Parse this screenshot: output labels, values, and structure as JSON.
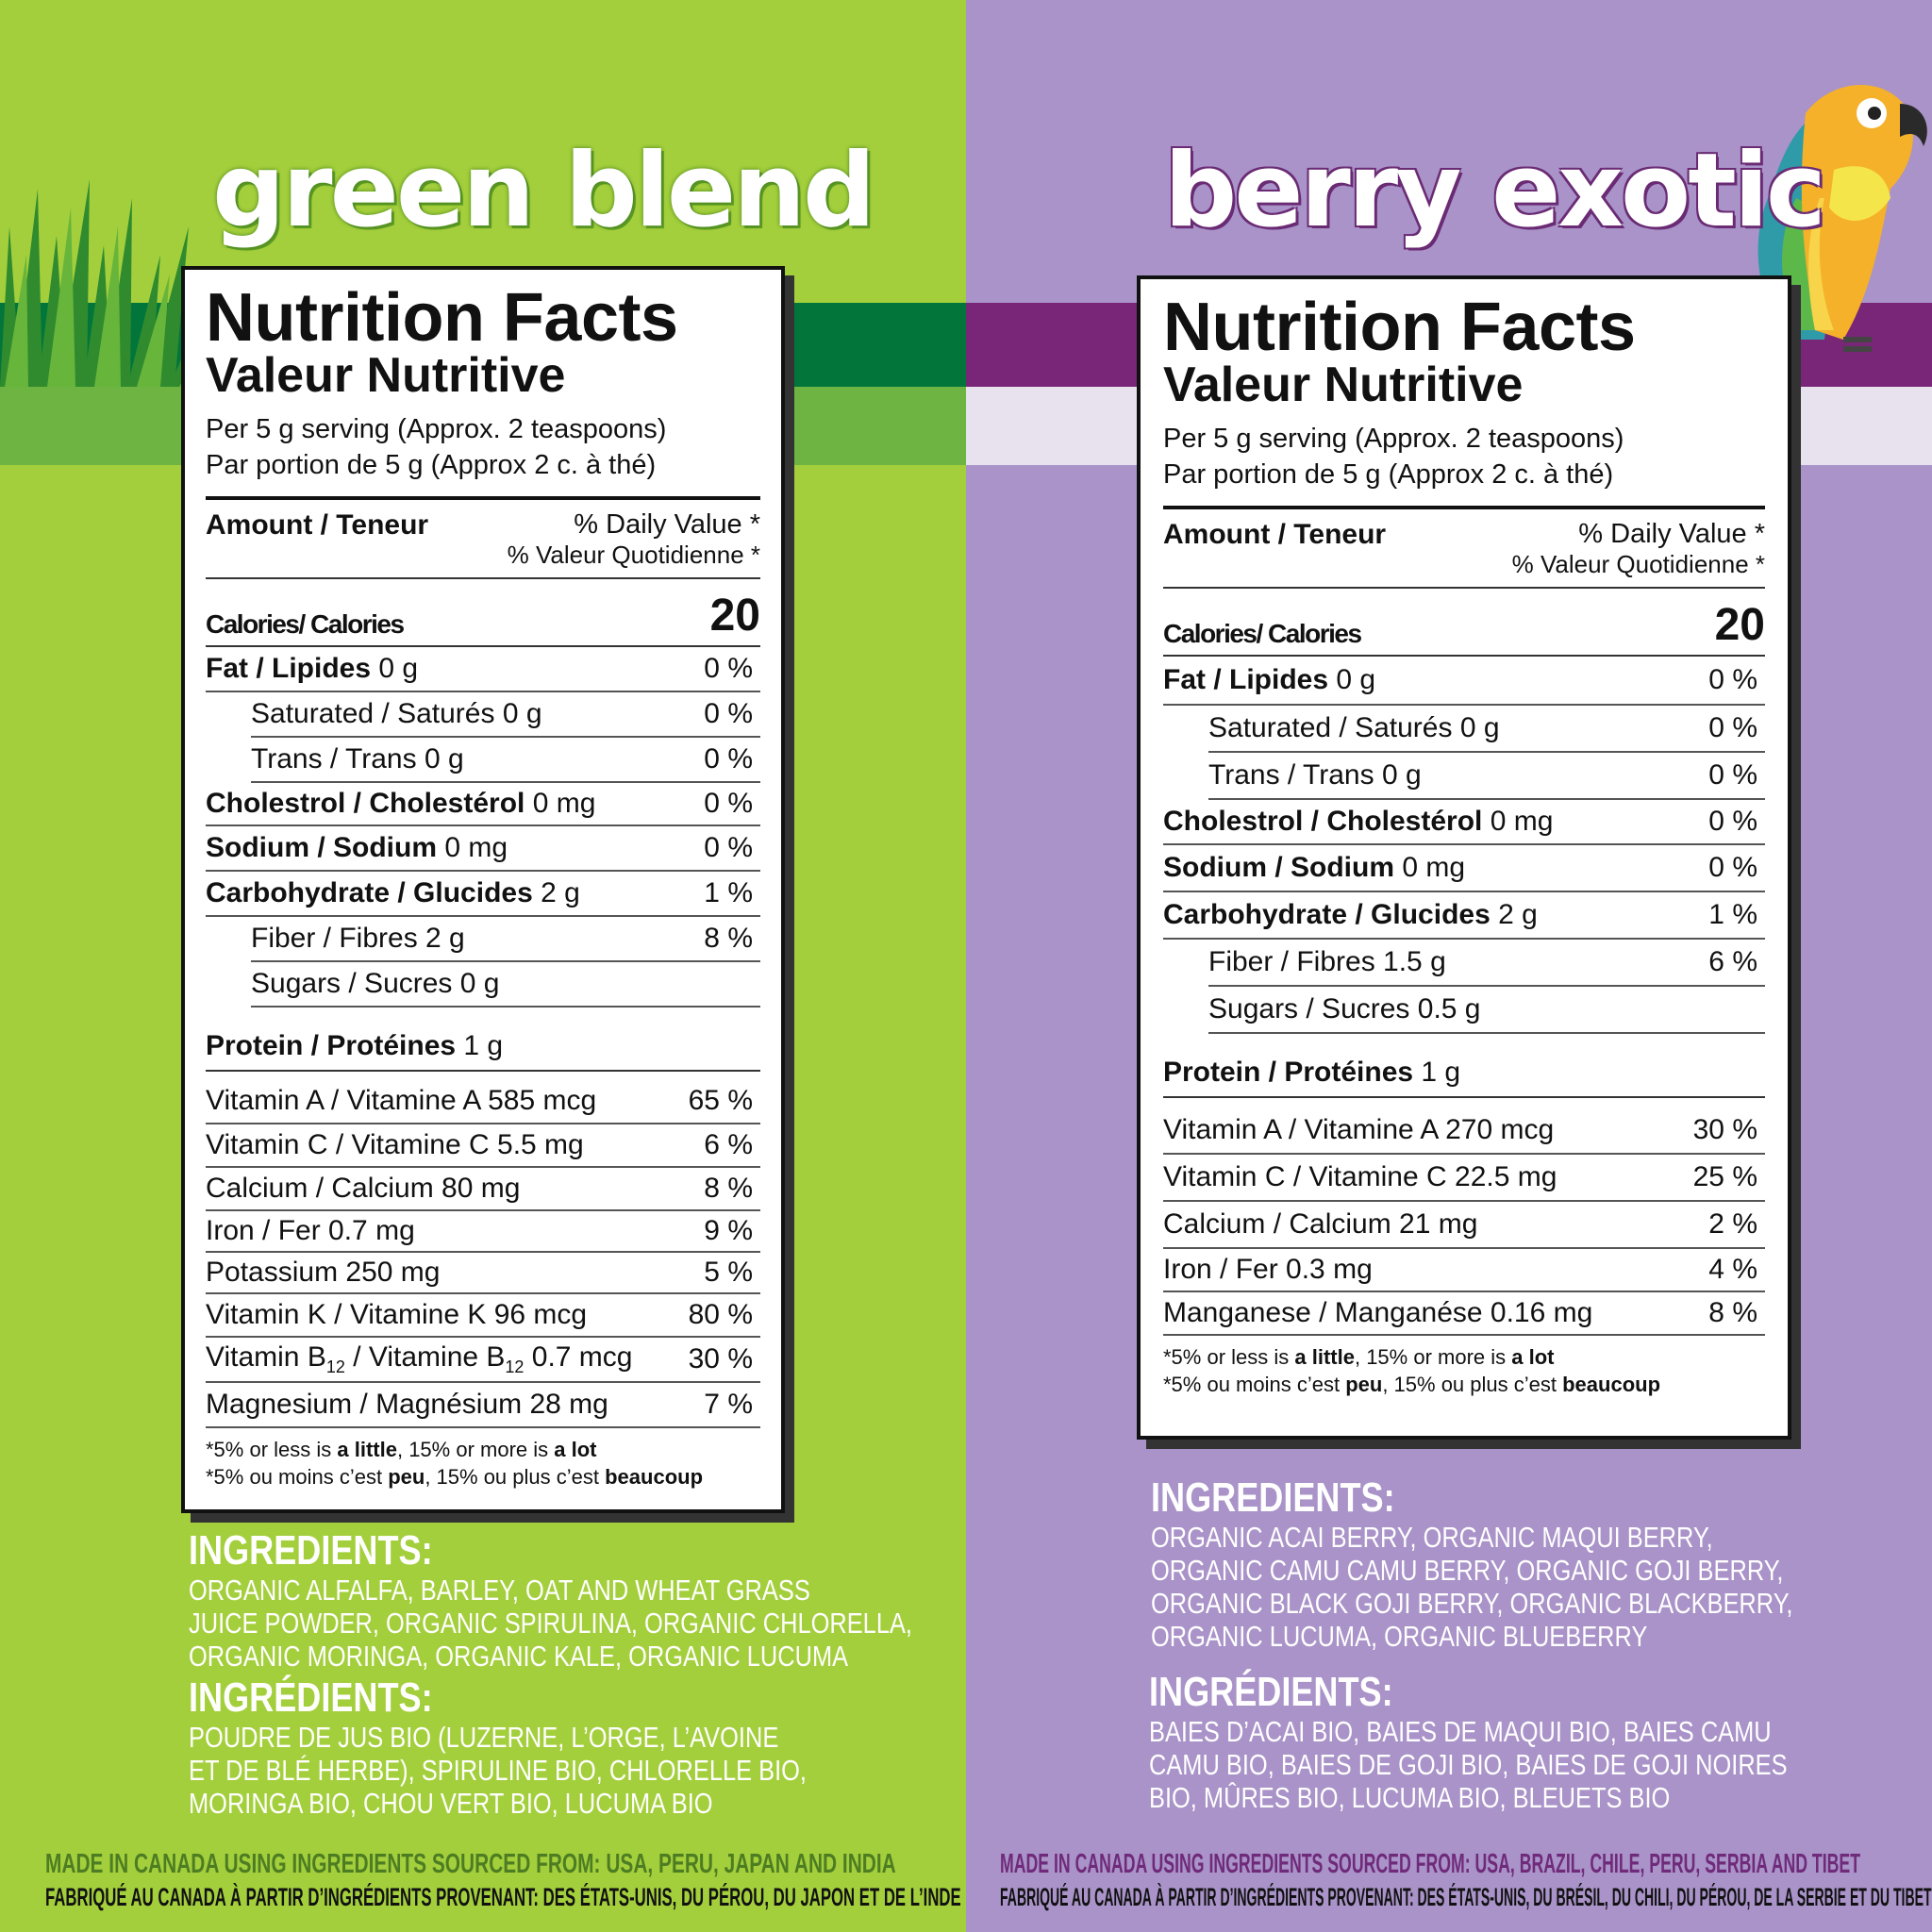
{
  "left": {
    "brand": "green blend",
    "colors": {
      "background": "#a4cf3c",
      "stripe_dark": "#02763a",
      "stripe_light": "#6db443",
      "made_in_text": "#4d7d22"
    },
    "panel": {
      "title": "Nutrition Facts",
      "subtitle": "Valeur Nutritive",
      "serving_en": "Per 5 g serving (Approx. 2 teaspoons)",
      "serving_fr": "Par portion de 5 g (Approx 2 c. à thé)",
      "amount_label": "Amount / Teneur",
      "dv_en": "% Daily Value *",
      "dv_fr": "% Valeur Quotidienne *",
      "calories_label": "Calories/ Calories",
      "calories_value": "20",
      "rows": [
        {
          "name": "Fat / Lipides",
          "amount": " 0 g",
          "dv": "0 %"
        },
        {
          "name": "Saturated / Saturés 0 g",
          "dv": "0 %"
        },
        {
          "name": "Trans / Trans 0 g",
          "dv": "0 %"
        },
        {
          "name": "Cholestrol / Cholestérol",
          "amount": " 0 mg",
          "dv": "0 %"
        },
        {
          "name": "Sodium / Sodium",
          "amount": " 0 mg",
          "dv": "0 %"
        },
        {
          "name": "Carbohydrate / Glucides",
          "amount": " 2 g",
          "dv": "1 %"
        },
        {
          "name": "Fiber / Fibres 2 g",
          "dv": "8 %"
        },
        {
          "name": "Sugars / Sucres 0 g",
          "dv": ""
        },
        {
          "name": "Protein / Protéines",
          "amount": " 1 g",
          "dv": ""
        },
        {
          "name": "Vitamin A / Vitamine A 585 mcg",
          "dv": "65 %"
        },
        {
          "name": "Vitamin C / Vitamine C 5.5 mg",
          "dv": "6 %"
        },
        {
          "name": "Calcium / Calcium 80 mg",
          "dv": "8 %"
        },
        {
          "name": "Iron / Fer 0.7 mg",
          "dv": "9 %"
        },
        {
          "name": "Potassium 250 mg",
          "dv": "5 %"
        },
        {
          "name": "Vitamin K / Vitamine K 96 mcg",
          "dv": "80 %"
        },
        {
          "name_a": "Vitamin B",
          "sub": "12",
          "name_b": " / Vitamine B",
          "name_c": " 0.7 mcg",
          "dv": "30 %"
        },
        {
          "name": "Magnesium / Magnésium 28 mg",
          "dv": "7 %"
        }
      ],
      "foot_en_a": "*5% or less is ",
      "foot_en_b": "a little",
      "foot_en_c": ", 15% or more is ",
      "foot_en_d": "a lot",
      "foot_fr_a": "*5% ou moins c’est ",
      "foot_fr_b": "peu",
      "foot_fr_c": ", 15% ou plus c’est ",
      "foot_fr_d": "beaucoup"
    },
    "ingredients_title": "INGREDIENTS:",
    "ingredients_lines": [
      "ORGANIC ALFALFA, BARLEY, OAT AND WHEAT GRASS",
      "JUICE POWDER, ORGANIC SPIRULINA, ORGANIC CHLORELLA,",
      "ORGANIC MORINGA, ORGANIC KALE, ORGANIC LUCUMA"
    ],
    "ingredients_fr_title": "INGRÉDIENTS:",
    "ingredients_fr_lines": [
      "POUDRE DE JUS BIO (LUZERNE, L’ORGE, L’AVOINE",
      "ET DE BLÉ HERBE), SPIRULINE BIO, CHLORELLE BIO,",
      "MORINGA BIO, CHOU VERT BIO, LUCUMA BIO"
    ],
    "made_en": "MADE IN CANADA USING INGREDIENTS SOURCED FROM: USA, PERU, JAPAN AND INDIA",
    "made_fr": "FABRIQUÉ AU CANADA À PARTIR D’INGRÉDIENTS PROVENANT: DES ÉTATS-UNIS, DU PÉROU, DU JAPON ET DE L’INDE"
  },
  "right": {
    "brand": "berry exotic",
    "colors": {
      "background": "#a993c8",
      "stripe_dark": "#792678",
      "stripe_light": "#e7e2ed",
      "made_in_text": "#6f2a7a"
    },
    "panel": {
      "title": "Nutrition Facts",
      "subtitle": "Valeur Nutritive",
      "serving_en": "Per 5 g serving (Approx. 2 teaspoons)",
      "serving_fr": "Par portion de 5 g (Approx 2 c. à thé)",
      "amount_label": "Amount / Teneur",
      "dv_en": "% Daily Value *",
      "dv_fr": "% Valeur Quotidienne *",
      "calories_label": "Calories/ Calories",
      "calories_value": "20",
      "rows": [
        {
          "name": "Fat / Lipides",
          "amount": " 0 g",
          "dv": "0 %"
        },
        {
          "name": "Saturated / Saturés 0 g",
          "dv": "0 %"
        },
        {
          "name": "Trans / Trans 0 g",
          "dv": "0 %"
        },
        {
          "name": "Cholestrol / Cholestérol",
          "amount": " 0 mg",
          "dv": "0 %"
        },
        {
          "name": "Sodium / Sodium",
          "amount": " 0 mg",
          "dv": "0 %"
        },
        {
          "name": "Carbohydrate / Glucides",
          "amount": " 2 g",
          "dv": "1 %"
        },
        {
          "name": "Fiber / Fibres 1.5 g",
          "dv": "6 %"
        },
        {
          "name": "Sugars / Sucres 0.5 g",
          "dv": ""
        },
        {
          "name": "Protein / Protéines",
          "amount": " 1 g",
          "dv": ""
        },
        {
          "name": "Vitamin A / Vitamine A 270 mcg",
          "dv": "30 %"
        },
        {
          "name": "Vitamin C / Vitamine C 22.5 mg",
          "dv": "25 %"
        },
        {
          "name": "Calcium / Calcium 21 mg",
          "dv": "2 %"
        },
        {
          "name": "Iron / Fer 0.3 mg",
          "dv": "4 %"
        },
        {
          "name": "Manganese / Manganése 0.16 mg",
          "dv": "8 %"
        }
      ],
      "foot_en_a": "*5% or less is ",
      "foot_en_b": "a little",
      "foot_en_c": ", 15% or more is ",
      "foot_en_d": "a lot",
      "foot_fr_a": "*5% ou moins c’est ",
      "foot_fr_b": "peu",
      "foot_fr_c": ", 15% ou plus c’est ",
      "foot_fr_d": "beaucoup"
    },
    "ingredients_title": "INGREDIENTS:",
    "ingredients_lines": [
      "ORGANIC ACAI BERRY, ORGANIC MAQUI BERRY,",
      "ORGANIC CAMU CAMU BERRY, ORGANIC GOJI BERRY,",
      "ORGANIC BLACK GOJI BERRY, ORGANIC BLACKBERRY,",
      "ORGANIC LUCUMA, ORGANIC BLUEBERRY"
    ],
    "ingredients_fr_title": "INGRÉDIENTS:",
    "ingredients_fr_lines": [
      "BAIES D’ACAI BIO, BAIES DE MAQUI BIO, BAIES CAMU",
      "CAMU BIO, BAIES DE GOJI BIO, BAIES DE GOJI NOIRES",
      "BIO, MÛRES BIO, LUCUMA BIO, BLEUETS BIO"
    ],
    "made_en": "MADE IN CANADA USING INGREDIENTS SOURCED FROM: USA, BRAZIL, CHILE, PERU, SERBIA AND TIBET",
    "made_fr": "FABRIQUÉ AU CANADA À PARTIR D’INGRÉDIENTS PROVENANT: DES ÉTATS-UNIS, DU BRÉSIL, DU CHILI, DU PÉROU, DE LA SERBIE ET DU TIBET"
  },
  "icons": {
    "grass": "grass-illustration-icon",
    "parrot": "parrot-illustration-icon"
  }
}
